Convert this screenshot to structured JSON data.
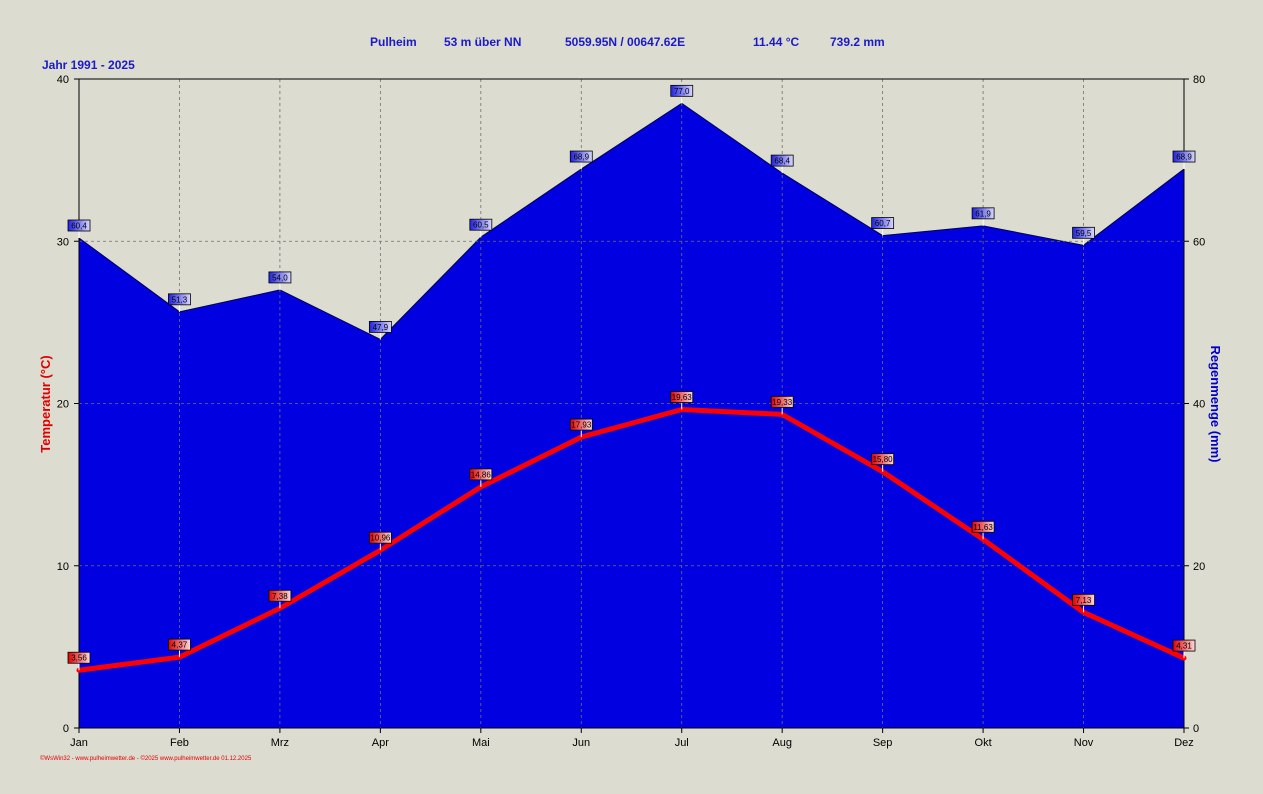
{
  "header": {
    "station": "Pulheim",
    "elevation": "53 m über NN",
    "coords": "5059.95N / 00647.62E",
    "mean_temp": "11.44 °C",
    "annual_rain": "739.2 mm",
    "period": "Jahr  1991 - 2025"
  },
  "footer": "©WsWin32 - www.pulheimwetter.de - ©2025 www.pulheimwetter.de  01.12.2025",
  "colors": {
    "temperature": "#ff0000",
    "rain": "#0000e0",
    "background": "#dcdcd0"
  },
  "chart_data": {
    "type": "area",
    "categories": [
      "Jan",
      "Feb",
      "Mrz",
      "Apr",
      "Mai",
      "Jun",
      "Jul",
      "Aug",
      "Sep",
      "Okt",
      "Nov",
      "Dez"
    ],
    "series": [
      {
        "axis": "right",
        "kind": "area",
        "values": [
          60.4,
          51.3,
          54.0,
          47.9,
          60.5,
          68.9,
          77.0,
          68.4,
          60.7,
          61.9,
          59.5,
          68.9
        ],
        "labels": [
          "60,4",
          "51,3",
          "54,0",
          "47,9",
          "60,5",
          "68,9",
          "77,0",
          "68,4",
          "60,7",
          "61,9",
          "59,5",
          "68,9"
        ]
      },
      {
        "axis": "left",
        "kind": "line",
        "values": [
          3.56,
          4.37,
          7.38,
          10.96,
          14.86,
          17.93,
          19.63,
          19.33,
          15.8,
          11.63,
          7.13,
          4.31
        ],
        "labels": [
          "3,56",
          "4,37",
          "7,38",
          "10,96",
          "14,86",
          "17,93",
          "19,63",
          "19,33",
          "15,80",
          "11,63",
          "7,13",
          "4,31"
        ]
      }
    ],
    "y_left": {
      "label": "Temperatur  (°C)",
      "lim": [
        0,
        40
      ],
      "ticks": [
        "0",
        "10",
        "20",
        "30",
        "40"
      ]
    },
    "y_right": {
      "label": "Regenmenge  (mm)",
      "lim": [
        0,
        80
      ],
      "ticks": [
        "0",
        "20",
        "40",
        "60",
        "80"
      ]
    },
    "grid": true
  }
}
